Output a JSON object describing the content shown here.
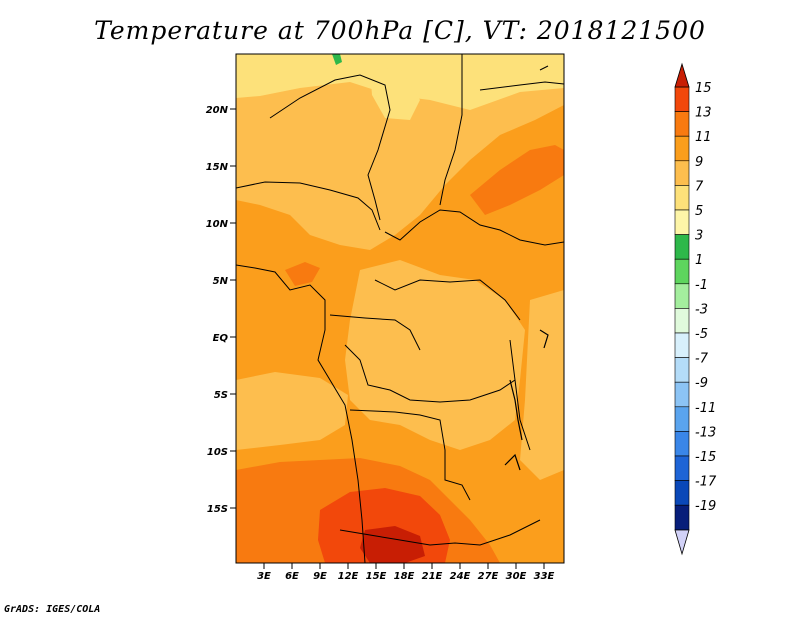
{
  "title": "Temperature at 700hPa [C], VT: 2018121500",
  "credit": "GrADS: IGES/COLA",
  "map": {
    "lat_labels": [
      "20N",
      "15N",
      "10N",
      "5N",
      "EQ",
      "5S",
      "10S",
      "15S"
    ],
    "lon_labels": [
      "3E",
      "6E",
      "9E",
      "12E",
      "15E",
      "18E",
      "21E",
      "24E",
      "27E",
      "30E",
      "33E"
    ],
    "field_colors": {
      "c5_7": "#FDE17A",
      "c7_9": "#FDBE4E",
      "c9_11": "#FB9E1C",
      "c11_13": "#F87A10",
      "c13_15": "#F2480B",
      "c15": "#C81E04",
      "c1_3": "#2EB84A"
    }
  },
  "colorbar": {
    "labels": [
      "15",
      "13",
      "11",
      "9",
      "7",
      "5",
      "3",
      "1",
      "-1",
      "-3",
      "-5",
      "-7",
      "-9",
      "-11",
      "-13",
      "-15",
      "-17",
      "-19"
    ],
    "colors": [
      "#F2480B",
      "#F87A10",
      "#FB9E1C",
      "#FDBE4E",
      "#FDE17A",
      "#FDF5A8",
      "#2EB84A",
      "#5ED55E",
      "#A4EE9E",
      "#E0FADC",
      "#D8F0FC",
      "#B4DCF8",
      "#8CC4F5",
      "#5AA4EE",
      "#3A86E8",
      "#1E64D6",
      "#0A48B8",
      "#071E7A"
    ],
    "top_arrow_color": "#C81E04",
    "bottom_arrow_color": "#D2D2F8"
  }
}
